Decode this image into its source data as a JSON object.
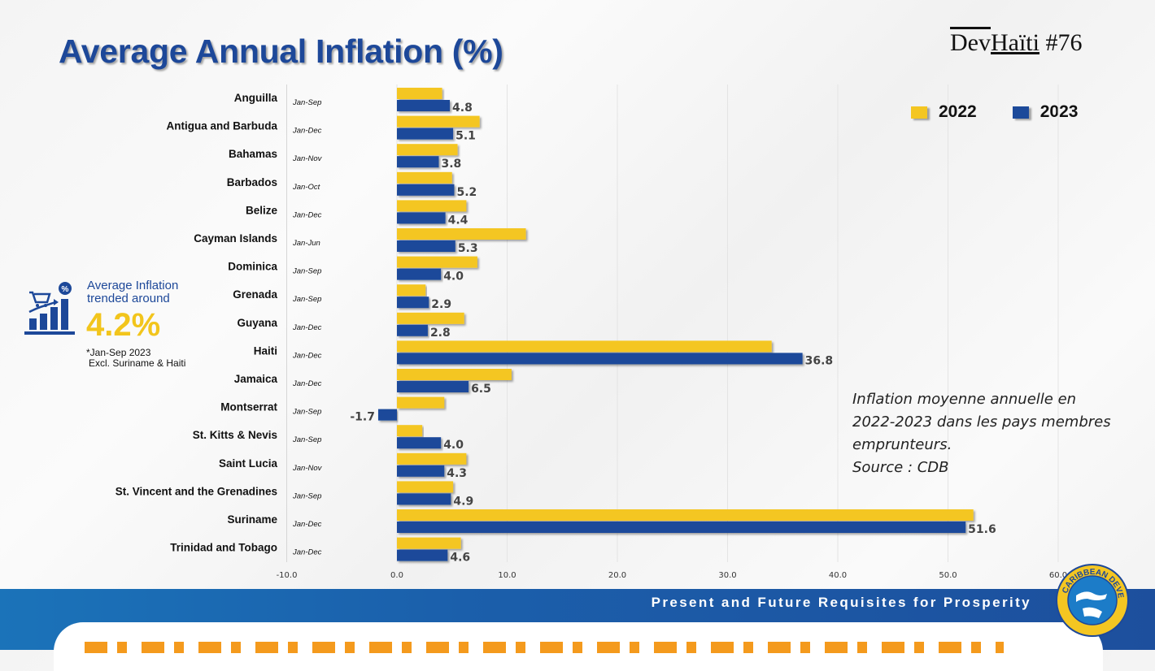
{
  "slide": {
    "title": "Average Annual Inflation (%)",
    "brand": {
      "part1": "Dev",
      "part2": "Haïti",
      "part3": " #76"
    },
    "tagline": "Present and Future Requisites for Prosperity",
    "logo_text": "CARIBBEAN DEVELOPMENT BANK"
  },
  "callout": {
    "line1": "Average Inflation",
    "line2": "trended around",
    "value": "4.2%",
    "note1": "*Jan-Sep 2023",
    "note2": "Excl. Suriname & Haiti",
    "icon": "shopping-cart-chart-icon"
  },
  "annotation": {
    "line1": "Inflation moyenne annuelle en",
    "line2": "2022-2023 dans les pays membres",
    "line3": "emprunteurs.",
    "line4": "Source : CDB"
  },
  "colors": {
    "y2022": "#f4c622",
    "y2023": "#1c4a9a",
    "title": "#1d4899",
    "band": "#1b5fab"
  },
  "chart_data": {
    "type": "bar",
    "orientation": "horizontal",
    "title": "Average Annual Inflation (%)",
    "xlabel": "",
    "ylabel": "",
    "xlim": [
      -10,
      60
    ],
    "xticks": [
      "-10.0",
      "0.0",
      "10.0",
      "20.0",
      "30.0",
      "40.0",
      "50.0",
      "60.0"
    ],
    "xtick_values": [
      -10,
      0,
      10,
      20,
      30,
      40,
      50,
      60
    ],
    "grid": true,
    "legend": {
      "position": "top-right",
      "entries": [
        "2022",
        "2023"
      ]
    },
    "categories": [
      "Anguilla",
      "Antigua and Barbuda",
      "Bahamas",
      "Barbados",
      "Belize",
      "Cayman Islands",
      "Dominica",
      "Grenada",
      "Guyana",
      "Haiti",
      "Jamaica",
      "Montserrat",
      "St. Kitts & Nevis",
      "Saint Lucia",
      "St. Vincent and the Grenadines",
      "Suriname",
      "Trinidad and Tobago"
    ],
    "periods": [
      "Jan-Sep",
      "Jan-Dec",
      "Jan-Nov",
      "Jan-Oct",
      "Jan-Dec",
      "Jan-Jun",
      "Jan-Sep",
      "Jan-Sep",
      "Jan-Dec",
      "Jan-Dec",
      "Jan-Dec",
      "Jan-Sep",
      "Jan-Sep",
      "Jan-Nov",
      "Jan-Sep",
      "Jan-Dec",
      "Jan-Dec"
    ],
    "series": [
      {
        "name": "2022",
        "values": [
          4.1,
          7.5,
          5.5,
          5.0,
          6.3,
          11.7,
          7.3,
          2.6,
          6.1,
          34.0,
          10.4,
          4.3,
          2.3,
          6.3,
          5.1,
          52.3,
          5.8
        ],
        "labeled": false
      },
      {
        "name": "2023",
        "values": [
          4.8,
          5.1,
          3.8,
          5.2,
          4.4,
          5.3,
          4.0,
          2.9,
          2.8,
          36.8,
          6.5,
          -1.7,
          4.0,
          4.3,
          4.9,
          51.6,
          4.6
        ],
        "labeled": true
      }
    ]
  }
}
